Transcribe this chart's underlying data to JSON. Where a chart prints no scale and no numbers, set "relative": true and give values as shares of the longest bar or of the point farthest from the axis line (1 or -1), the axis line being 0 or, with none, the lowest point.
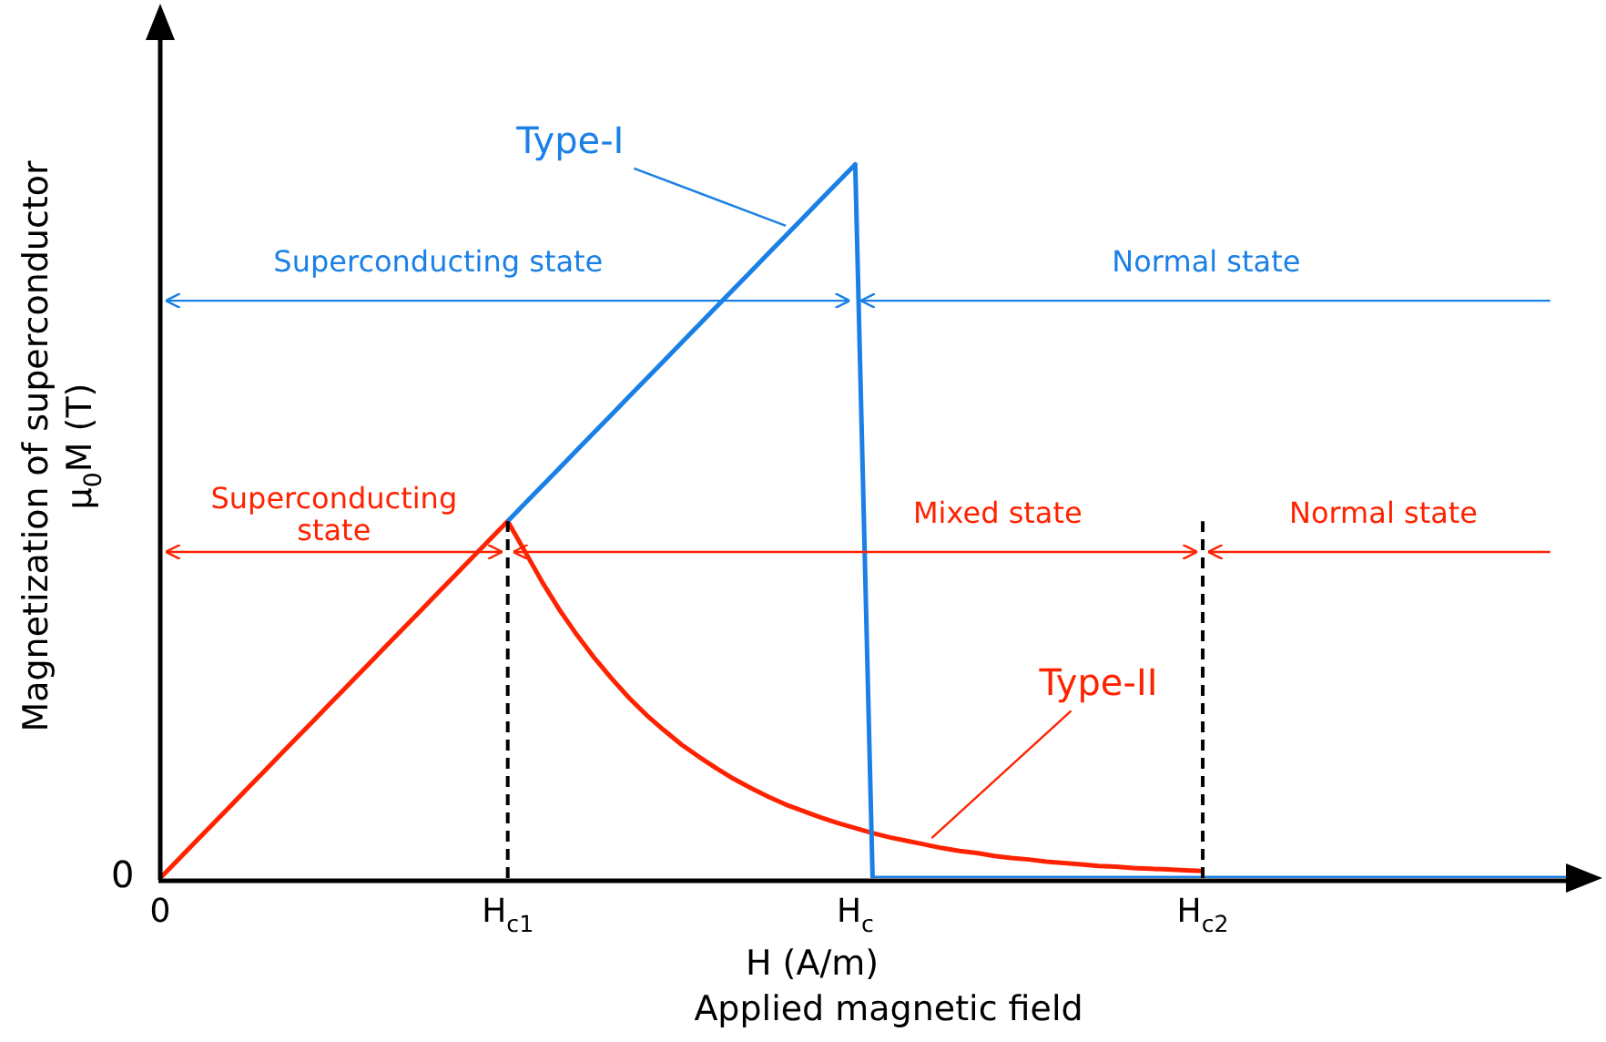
{
  "chart_data": {
    "type": "line",
    "relative": true,
    "xlabel": "H (A/m)\nApplied magnetic field",
    "ylabel": "Magnetization of superconductor\nμ$_{0}$M (T)",
    "categories": [
      "0",
      null,
      null,
      null,
      null,
      null,
      null,
      null,
      null,
      null,
      null,
      null,
      null,
      null,
      null,
      null,
      null,
      null,
      null,
      null,
      "H$_{c1}$",
      null,
      null,
      null,
      null,
      null,
      null,
      null,
      null,
      null,
      null,
      null,
      null,
      null,
      null,
      null,
      null,
      null,
      null,
      null,
      "H$_{c}$",
      null,
      null,
      null,
      null,
      null,
      null,
      null,
      null,
      null,
      null,
      null,
      null,
      null,
      null,
      null,
      null,
      null,
      null,
      null,
      "H$_{c2}$",
      null,
      null,
      null,
      null,
      null,
      null,
      null,
      null,
      null,
      null,
      null,
      null,
      null,
      null,
      null,
      null,
      null,
      null,
      null,
      null,
      null,
      null,
      null
    ],
    "series": [
      {
        "name": "Type-I",
        "color": "#1a80e6",
        "values": [
          null,
          null,
          null,
          null,
          null,
          null,
          null,
          null,
          null,
          null,
          null,
          null,
          null,
          null,
          null,
          null,
          null,
          null,
          null,
          null,
          0.5,
          0.525,
          0.55,
          0.575,
          0.6,
          0.625,
          0.65,
          0.675,
          0.7,
          0.725,
          0.75,
          0.775,
          0.8,
          0.825,
          0.85,
          0.875,
          0.9,
          0.925,
          0.95,
          0.975,
          1,
          0,
          0,
          0,
          0,
          0,
          0,
          0,
          0,
          0,
          0,
          0,
          0,
          0,
          0,
          0,
          0,
          0,
          0,
          0,
          0,
          0,
          0,
          0,
          0,
          0,
          0,
          0,
          0,
          0,
          0,
          0,
          0,
          0,
          0,
          0,
          0,
          0,
          0,
          0,
          0,
          0,
          0,
          null
        ]
      },
      {
        "name": "Type-II",
        "color": "#ff2200",
        "values": [
          0,
          0.025,
          0.05,
          0.075,
          0.1,
          0.125,
          0.15,
          0.175,
          0.2,
          0.225,
          0.25,
          0.275,
          0.3,
          0.325,
          0.35,
          0.375,
          0.4,
          0.425,
          0.45,
          0.475,
          0.5,
          0.457,
          0.414,
          0.375,
          0.34,
          0.308,
          0.279,
          0.252,
          0.228,
          0.207,
          0.187,
          0.17,
          0.154,
          0.139,
          0.126,
          0.114,
          0.103,
          0.094,
          0.085,
          0.077,
          0.07,
          0.063,
          0.057,
          0.052,
          0.047,
          0.042,
          0.038,
          0.035,
          0.031,
          0.028,
          0.026,
          0.023,
          0.021,
          0.019,
          0.017,
          0.016,
          0.014,
          0.013,
          0.012,
          0.011,
          0.01,
          null,
          null,
          null,
          null,
          null,
          null,
          null,
          null,
          null,
          null,
          null,
          null,
          null,
          null,
          null,
          null,
          null,
          null,
          null,
          null,
          null,
          null,
          null
        ]
      }
    ],
    "ref_lines": [
      {
        "axis": "x",
        "value": "H$_{c1}$",
        "color": "#000000",
        "line_style": "dashed"
      },
      {
        "axis": "x",
        "value": "H$_{c2}$",
        "color": "#000000",
        "line_style": "dashed"
      }
    ],
    "annotations": [
      "0",
      "Superconducting state",
      "Normal state",
      "Superconducting\nstate",
      "Mixed state",
      "Normal state"
    ],
    "marker": "none",
    "line_style": "solid"
  }
}
